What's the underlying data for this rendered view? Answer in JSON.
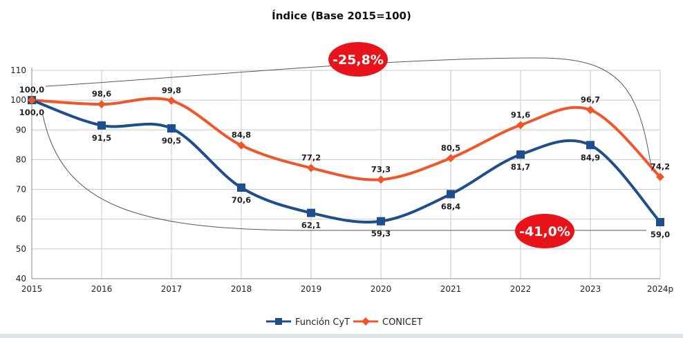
{
  "chart_data": {
    "type": "line",
    "title": "Índice (Base 2015=100)",
    "x": [
      "2015",
      "2016",
      "2017",
      "2018",
      "2019",
      "2020",
      "2021",
      "2022",
      "2023",
      "2024p"
    ],
    "ylim": [
      40,
      110
    ],
    "yticks": [
      40,
      50,
      60,
      70,
      80,
      90,
      100,
      110
    ],
    "grid": true,
    "legend_position": "bottom",
    "series": [
      {
        "name": "Función CyT",
        "color": "#1f4e8c",
        "marker": "square",
        "values": [
          100.0,
          91.5,
          90.5,
          70.6,
          62.1,
          59.3,
          68.4,
          81.7,
          84.9,
          59.0
        ],
        "labels": [
          "100,0",
          "91,5",
          "90,5",
          "70,6",
          "62,1",
          "59,3",
          "68,4",
          "81,7",
          "84,9",
          "59,0"
        ]
      },
      {
        "name": "CONICET",
        "color": "#f0562a",
        "marker": "diamond",
        "values": [
          100.0,
          98.6,
          99.8,
          84.8,
          77.2,
          73.3,
          80.5,
          91.6,
          96.7,
          74.2
        ],
        "labels": [
          "100,0",
          "98,6",
          "99,8",
          "84,8",
          "77,2",
          "73,3",
          "80,5",
          "91,6",
          "96,7",
          "74,2"
        ]
      }
    ],
    "annotations": [
      {
        "text": "-25,8%",
        "series": "CONICET",
        "color": "#e8131b"
      },
      {
        "text": "-41,0%",
        "series": "Función CyT",
        "color": "#e8131b"
      }
    ]
  }
}
